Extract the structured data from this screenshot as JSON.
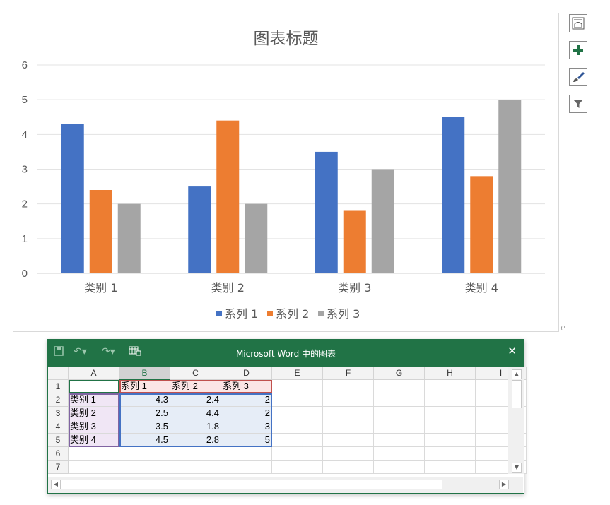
{
  "chart": {
    "title": "图表标题",
    "toolbar": [
      "layout-icon",
      "plus-icon",
      "brush-icon",
      "filter-icon"
    ]
  },
  "chart_data": {
    "type": "bar",
    "title": "图表标题",
    "categories": [
      "类别 1",
      "类别 2",
      "类别 3",
      "类别 4"
    ],
    "series": [
      {
        "name": "系列 1",
        "values": [
          4.3,
          2.5,
          3.5,
          4.5
        ],
        "color": "#4472c4"
      },
      {
        "name": "系列 2",
        "values": [
          2.4,
          4.4,
          1.8,
          2.8
        ],
        "color": "#ed7d31"
      },
      {
        "name": "系列 3",
        "values": [
          2,
          2,
          3,
          5
        ],
        "color": "#a5a5a5"
      }
    ],
    "ylim": [
      0,
      6
    ],
    "yticks": [
      "0",
      "1",
      "2",
      "3",
      "4",
      "5",
      "6"
    ],
    "grid": true,
    "legend": "bottom"
  },
  "excel": {
    "title": "Microsoft Word 中的图表",
    "close": "✕",
    "columns": [
      "A",
      "B",
      "C",
      "D",
      "E",
      "F",
      "G",
      "H",
      "I"
    ],
    "rows": [
      "1",
      "2",
      "3",
      "4",
      "5",
      "6",
      "7"
    ],
    "cells": [
      [
        "",
        "系列 1",
        "系列 2",
        "系列 3"
      ],
      [
        "类别 1",
        "4.3",
        "2.4",
        "2"
      ],
      [
        "类别 2",
        "2.5",
        "4.4",
        "2"
      ],
      [
        "类别 3",
        "3.5",
        "1.8",
        "3"
      ],
      [
        "类别 4",
        "4.5",
        "2.8",
        "5"
      ],
      [
        "",
        "",
        "",
        ""
      ],
      [
        "",
        "",
        "",
        ""
      ]
    ],
    "selected_column": "B",
    "colors": {
      "title_bar": "#217346"
    }
  },
  "paragraph_mark": "↵"
}
